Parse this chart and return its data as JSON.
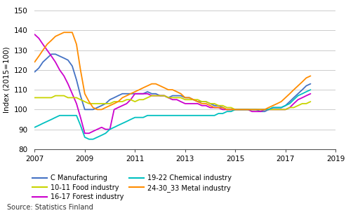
{
  "title": "",
  "ylabel": "Index (2015=100)",
  "source": "Source: Statistics Finland",
  "ylim": [
    80,
    150
  ],
  "xlim": [
    2007.0,
    2019.0
  ],
  "yticks": [
    80,
    90,
    100,
    110,
    120,
    130,
    140,
    150
  ],
  "xticks": [
    2007,
    2009,
    2011,
    2013,
    2015,
    2017,
    2019
  ],
  "series": [
    {
      "name": "C Manufacturing",
      "color": "#4472c4",
      "x": [
        2007.0,
        2007.17,
        2007.33,
        2007.5,
        2007.67,
        2007.83,
        2008.0,
        2008.17,
        2008.33,
        2008.5,
        2008.67,
        2008.83,
        2009.0,
        2009.17,
        2009.33,
        2009.5,
        2009.67,
        2009.83,
        2010.0,
        2010.17,
        2010.33,
        2010.5,
        2010.67,
        2010.83,
        2011.0,
        2011.17,
        2011.33,
        2011.5,
        2011.67,
        2011.83,
        2012.0,
        2012.17,
        2012.33,
        2012.5,
        2012.67,
        2012.83,
        2013.0,
        2013.17,
        2013.33,
        2013.5,
        2013.67,
        2013.83,
        2014.0,
        2014.17,
        2014.33,
        2014.5,
        2014.67,
        2014.83,
        2015.0,
        2015.17,
        2015.33,
        2015.5,
        2015.67,
        2015.83,
        2016.0,
        2016.17,
        2016.33,
        2016.5,
        2016.67,
        2016.83,
        2017.0,
        2017.17,
        2017.33,
        2017.5,
        2017.67,
        2017.83,
        2018.0
      ],
      "y": [
        119,
        121,
        124,
        126,
        128,
        128,
        127,
        126,
        125,
        122,
        115,
        107,
        100,
        100,
        100,
        101,
        102,
        103,
        105,
        106,
        107,
        108,
        108,
        108,
        108,
        108,
        108,
        109,
        108,
        108,
        107,
        107,
        106,
        107,
        107,
        107,
        106,
        106,
        105,
        104,
        104,
        104,
        103,
        102,
        102,
        101,
        100,
        100,
        100,
        100,
        100,
        100,
        100,
        100,
        99,
        99,
        100,
        101,
        101,
        101,
        102,
        104,
        106,
        108,
        110,
        112,
        113
      ]
    },
    {
      "name": "16-17 Forest industry",
      "color": "#cc00cc",
      "x": [
        2007.0,
        2007.17,
        2007.33,
        2007.5,
        2007.67,
        2007.83,
        2008.0,
        2008.17,
        2008.33,
        2008.5,
        2008.67,
        2008.83,
        2009.0,
        2009.17,
        2009.33,
        2009.5,
        2009.67,
        2009.83,
        2010.0,
        2010.17,
        2010.33,
        2010.5,
        2010.67,
        2010.83,
        2011.0,
        2011.17,
        2011.33,
        2011.5,
        2011.67,
        2011.83,
        2012.0,
        2012.17,
        2012.33,
        2012.5,
        2012.67,
        2012.83,
        2013.0,
        2013.17,
        2013.33,
        2013.5,
        2013.67,
        2013.83,
        2014.0,
        2014.17,
        2014.33,
        2014.5,
        2014.67,
        2014.83,
        2015.0,
        2015.17,
        2015.33,
        2015.5,
        2015.67,
        2015.83,
        2016.0,
        2016.17,
        2016.33,
        2016.5,
        2016.67,
        2016.83,
        2017.0,
        2017.17,
        2017.33,
        2017.5,
        2017.67,
        2017.83,
        2018.0
      ],
      "y": [
        138,
        136,
        133,
        130,
        127,
        124,
        120,
        117,
        113,
        108,
        103,
        96,
        88,
        88,
        89,
        90,
        91,
        90,
        90,
        100,
        101,
        102,
        103,
        105,
        108,
        108,
        108,
        108,
        107,
        107,
        107,
        107,
        106,
        105,
        105,
        104,
        103,
        103,
        103,
        103,
        102,
        102,
        101,
        101,
        101,
        100,
        100,
        100,
        100,
        100,
        100,
        100,
        99,
        99,
        99,
        100,
        100,
        100,
        100,
        100,
        100,
        101,
        103,
        105,
        106,
        107,
        108
      ]
    },
    {
      "name": "10-11 Food industry",
      "color": "#c8d400",
      "x": [
        2007.0,
        2007.17,
        2007.33,
        2007.5,
        2007.67,
        2007.83,
        2008.0,
        2008.17,
        2008.33,
        2008.5,
        2008.67,
        2008.83,
        2009.0,
        2009.17,
        2009.33,
        2009.5,
        2009.67,
        2009.83,
        2010.0,
        2010.17,
        2010.33,
        2010.5,
        2010.67,
        2010.83,
        2011.0,
        2011.17,
        2011.33,
        2011.5,
        2011.67,
        2011.83,
        2012.0,
        2012.17,
        2012.33,
        2012.5,
        2012.67,
        2012.83,
        2013.0,
        2013.17,
        2013.33,
        2013.5,
        2013.67,
        2013.83,
        2014.0,
        2014.17,
        2014.33,
        2014.5,
        2014.67,
        2014.83,
        2015.0,
        2015.17,
        2015.33,
        2015.5,
        2015.67,
        2015.83,
        2016.0,
        2016.17,
        2016.33,
        2016.5,
        2016.67,
        2016.83,
        2017.0,
        2017.17,
        2017.33,
        2017.5,
        2017.67,
        2017.83,
        2018.0
      ],
      "y": [
        106,
        106,
        106,
        106,
        106,
        107,
        107,
        107,
        106,
        106,
        106,
        105,
        104,
        103,
        103,
        103,
        103,
        103,
        103,
        104,
        104,
        104,
        105,
        105,
        104,
        105,
        105,
        106,
        107,
        107,
        107,
        107,
        106,
        106,
        106,
        106,
        105,
        105,
        105,
        105,
        104,
        104,
        103,
        103,
        102,
        102,
        101,
        101,
        100,
        100,
        100,
        100,
        100,
        100,
        100,
        100,
        100,
        100,
        100,
        100,
        100,
        101,
        101,
        102,
        103,
        103,
        104
      ]
    },
    {
      "name": "19-22 Chemical industry",
      "color": "#00c0c0",
      "x": [
        2007.0,
        2007.17,
        2007.33,
        2007.5,
        2007.67,
        2007.83,
        2008.0,
        2008.17,
        2008.33,
        2008.5,
        2008.67,
        2008.83,
        2009.0,
        2009.17,
        2009.33,
        2009.5,
        2009.67,
        2009.83,
        2010.0,
        2010.17,
        2010.33,
        2010.5,
        2010.67,
        2010.83,
        2011.0,
        2011.17,
        2011.33,
        2011.5,
        2011.67,
        2011.83,
        2012.0,
        2012.17,
        2012.33,
        2012.5,
        2012.67,
        2012.83,
        2013.0,
        2013.17,
        2013.33,
        2013.5,
        2013.67,
        2013.83,
        2014.0,
        2014.17,
        2014.33,
        2014.5,
        2014.67,
        2014.83,
        2015.0,
        2015.17,
        2015.33,
        2015.5,
        2015.67,
        2015.83,
        2016.0,
        2016.17,
        2016.33,
        2016.5,
        2016.67,
        2016.83,
        2017.0,
        2017.17,
        2017.33,
        2017.5,
        2017.67,
        2017.83,
        2018.0
      ],
      "y": [
        91,
        92,
        93,
        94,
        95,
        96,
        97,
        97,
        97,
        97,
        97,
        92,
        86,
        85,
        85,
        86,
        87,
        88,
        90,
        91,
        92,
        93,
        94,
        95,
        96,
        96,
        96,
        97,
        97,
        97,
        97,
        97,
        97,
        97,
        97,
        97,
        97,
        97,
        97,
        97,
        97,
        97,
        97,
        97,
        98,
        98,
        99,
        99,
        100,
        100,
        100,
        100,
        100,
        100,
        100,
        100,
        100,
        101,
        101,
        101,
        102,
        103,
        105,
        107,
        108,
        109,
        110
      ]
    },
    {
      "name": "24-30_33 Metal industry",
      "color": "#ff8c00",
      "x": [
        2007.0,
        2007.17,
        2007.33,
        2007.5,
        2007.67,
        2007.83,
        2008.0,
        2008.17,
        2008.33,
        2008.5,
        2008.67,
        2008.83,
        2009.0,
        2009.17,
        2009.33,
        2009.5,
        2009.67,
        2009.83,
        2010.0,
        2010.17,
        2010.33,
        2010.5,
        2010.67,
        2010.83,
        2011.0,
        2011.17,
        2011.33,
        2011.5,
        2011.67,
        2011.83,
        2012.0,
        2012.17,
        2012.33,
        2012.5,
        2012.67,
        2012.83,
        2013.0,
        2013.17,
        2013.33,
        2013.5,
        2013.67,
        2013.83,
        2014.0,
        2014.17,
        2014.33,
        2014.5,
        2014.67,
        2014.83,
        2015.0,
        2015.17,
        2015.33,
        2015.5,
        2015.67,
        2015.83,
        2016.0,
        2016.17,
        2016.33,
        2016.5,
        2016.67,
        2016.83,
        2017.0,
        2017.17,
        2017.33,
        2017.5,
        2017.67,
        2017.83,
        2018.0
      ],
      "y": [
        124,
        127,
        130,
        133,
        135,
        137,
        138,
        139,
        139,
        139,
        133,
        120,
        108,
        104,
        101,
        100,
        100,
        101,
        102,
        103,
        104,
        106,
        107,
        108,
        109,
        110,
        111,
        112,
        113,
        113,
        112,
        111,
        110,
        110,
        109,
        108,
        106,
        106,
        105,
        104,
        103,
        103,
        102,
        101,
        101,
        101,
        100,
        100,
        100,
        100,
        100,
        100,
        100,
        100,
        100,
        100,
        101,
        102,
        103,
        104,
        106,
        108,
        110,
        112,
        114,
        116,
        117
      ]
    }
  ],
  "legend_order": [
    {
      "label": "C Manufacturing",
      "color": "#4472c4"
    },
    {
      "label": "10-11 Food industry",
      "color": "#c8d400"
    },
    {
      "label": "16-17 Forest industry",
      "color": "#cc00cc"
    },
    {
      "label": "19-22 Chemical industry",
      "color": "#00c0c0"
    },
    {
      "label": "24-30_33 Metal industry",
      "color": "#ff8c00"
    }
  ],
  "bg_color": "#ffffff",
  "grid_color": "#cccccc",
  "linewidth": 1.3
}
